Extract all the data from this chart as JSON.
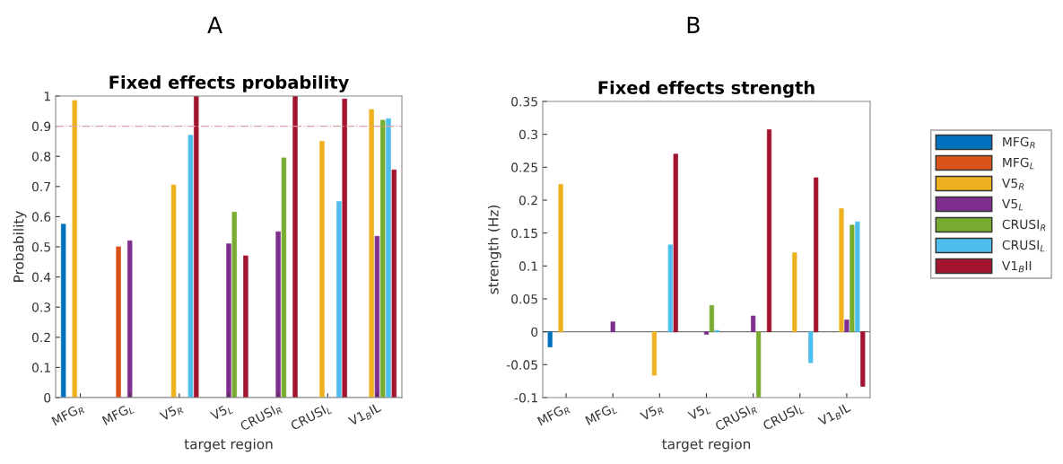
{
  "chart_data": [
    {
      "type": "bar",
      "title": "Fixed effects probability",
      "xlabel": "target region",
      "ylabel": "Probability",
      "annotations": [
        "A"
      ],
      "categories": [
        "MFG$_{R}$",
        "MFG$_{L}$",
        "V5$_{R}$",
        "V5$_{L}$",
        "CRUSI$_{R}$",
        "CRUSI$_{L}$",
        "V1$_{B}$IL"
      ],
      "series": [
        {
          "name": "MFG$_{R}$",
          "color": "#0072bd",
          "values": [
            0.575,
            null,
            null,
            null,
            null,
            null,
            null
          ]
        },
        {
          "name": "MFG$_{L}$",
          "color": "#d95319",
          "values": [
            null,
            0.5,
            null,
            null,
            null,
            null,
            null
          ]
        },
        {
          "name": "V5$_{R}$",
          "color": "#edb120",
          "values": [
            0.985,
            null,
            0.705,
            null,
            null,
            0.85,
            0.955
          ]
        },
        {
          "name": "V5$_{L}$",
          "color": "#7e2f8e",
          "values": [
            null,
            0.52,
            null,
            0.51,
            0.55,
            null,
            0.535
          ]
        },
        {
          "name": "CRUSI$_{R}$",
          "color": "#77ac30",
          "values": [
            null,
            null,
            null,
            0.615,
            0.795,
            null,
            0.92
          ]
        },
        {
          "name": "CRUSI$_{L}$",
          "color": "#4dbeee",
          "values": [
            null,
            null,
            0.87,
            null,
            null,
            0.65,
            0.925
          ]
        },
        {
          "name": "V1$_{B}$II",
          "color": "#a2142f",
          "values": [
            null,
            null,
            1.0,
            0.47,
            1.0,
            0.99,
            0.755
          ]
        }
      ],
      "ylim": [
        0,
        1
      ],
      "yticks": [
        0,
        0.1,
        0.2,
        0.3,
        0.4,
        0.5,
        0.6,
        0.7,
        0.8,
        0.9,
        1
      ],
      "ref_lines": [
        {
          "axis": "y",
          "value": 0.9,
          "color": "#e0a0a8",
          "line_style": "dashed"
        }
      ],
      "legend": "right"
    },
    {
      "type": "bar",
      "title": "Fixed effects strength",
      "xlabel": "target region",
      "ylabel": "strength (Hz)",
      "annotations": [
        "B"
      ],
      "categories": [
        "MFG$_{R}$",
        "MFG$_{L}$",
        "V5$_{R}$",
        "V5$_{L}$",
        "CRUSI$_{R}$",
        "CRUSI$_{L}$",
        "V1$_{B}$IL"
      ],
      "series": [
        {
          "color": "#0072bd",
          "values": [
            -0.023,
            null,
            null,
            null,
            null,
            null,
            null
          ]
        },
        {
          "values": [
            null,
            null,
            null,
            null,
            null,
            null,
            null
          ]
        },
        {
          "color": "#edb120",
          "values": [
            0.224,
            null,
            -0.066,
            null,
            null,
            0.12,
            0.187
          ]
        },
        {
          "color": "#7e2f8e",
          "values": [
            null,
            0.015,
            null,
            -0.004,
            0.024,
            null,
            0.018
          ]
        },
        {
          "color": "#77ac30",
          "values": [
            null,
            null,
            null,
            0.04,
            -0.1,
            null,
            0.162
          ]
        },
        {
          "color": "#4dbeee",
          "values": [
            null,
            null,
            0.132,
            0.002,
            null,
            -0.047,
            0.167
          ]
        },
        {
          "color": "#a2142f",
          "values": [
            null,
            null,
            0.27,
            null,
            0.307,
            0.234,
            -0.083
          ]
        }
      ],
      "ylim": [
        -0.1,
        0.35
      ],
      "yticks": [
        -0.1,
        -0.05,
        0,
        0.05,
        0.1,
        0.15,
        0.2,
        0.25,
        0.3,
        0.35
      ]
    }
  ]
}
